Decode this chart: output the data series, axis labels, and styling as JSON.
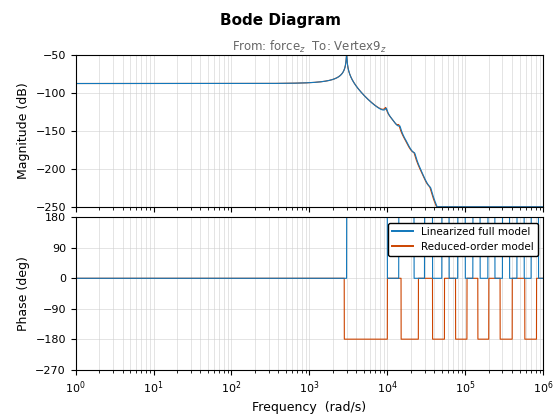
{
  "title": "Bode Diagram",
  "subtitle_template": "From: force$_{z}$  To: Vertex9$_{z}$",
  "xlabel": "Frequency  (rad/s)",
  "ylabel_mag": "Magnitude (dB)",
  "ylabel_phase": "Phase (deg)",
  "mag_ylim": [
    -250,
    -50
  ],
  "mag_yticks": [
    -250,
    -200,
    -150,
    -100,
    -50
  ],
  "phase_ylim": [
    -270,
    180
  ],
  "phase_yticks": [
    -270,
    -180,
    -90,
    0,
    90,
    180
  ],
  "xlim": [
    1,
    1000000.0
  ],
  "color_full": "#1177bb",
  "color_reduced": "#cc4400",
  "legend_labels": [
    "Linearized full model",
    "Reduced-order model"
  ],
  "flat_mag": -88.0,
  "peak_freq": 3000,
  "peak_mag": -52
}
